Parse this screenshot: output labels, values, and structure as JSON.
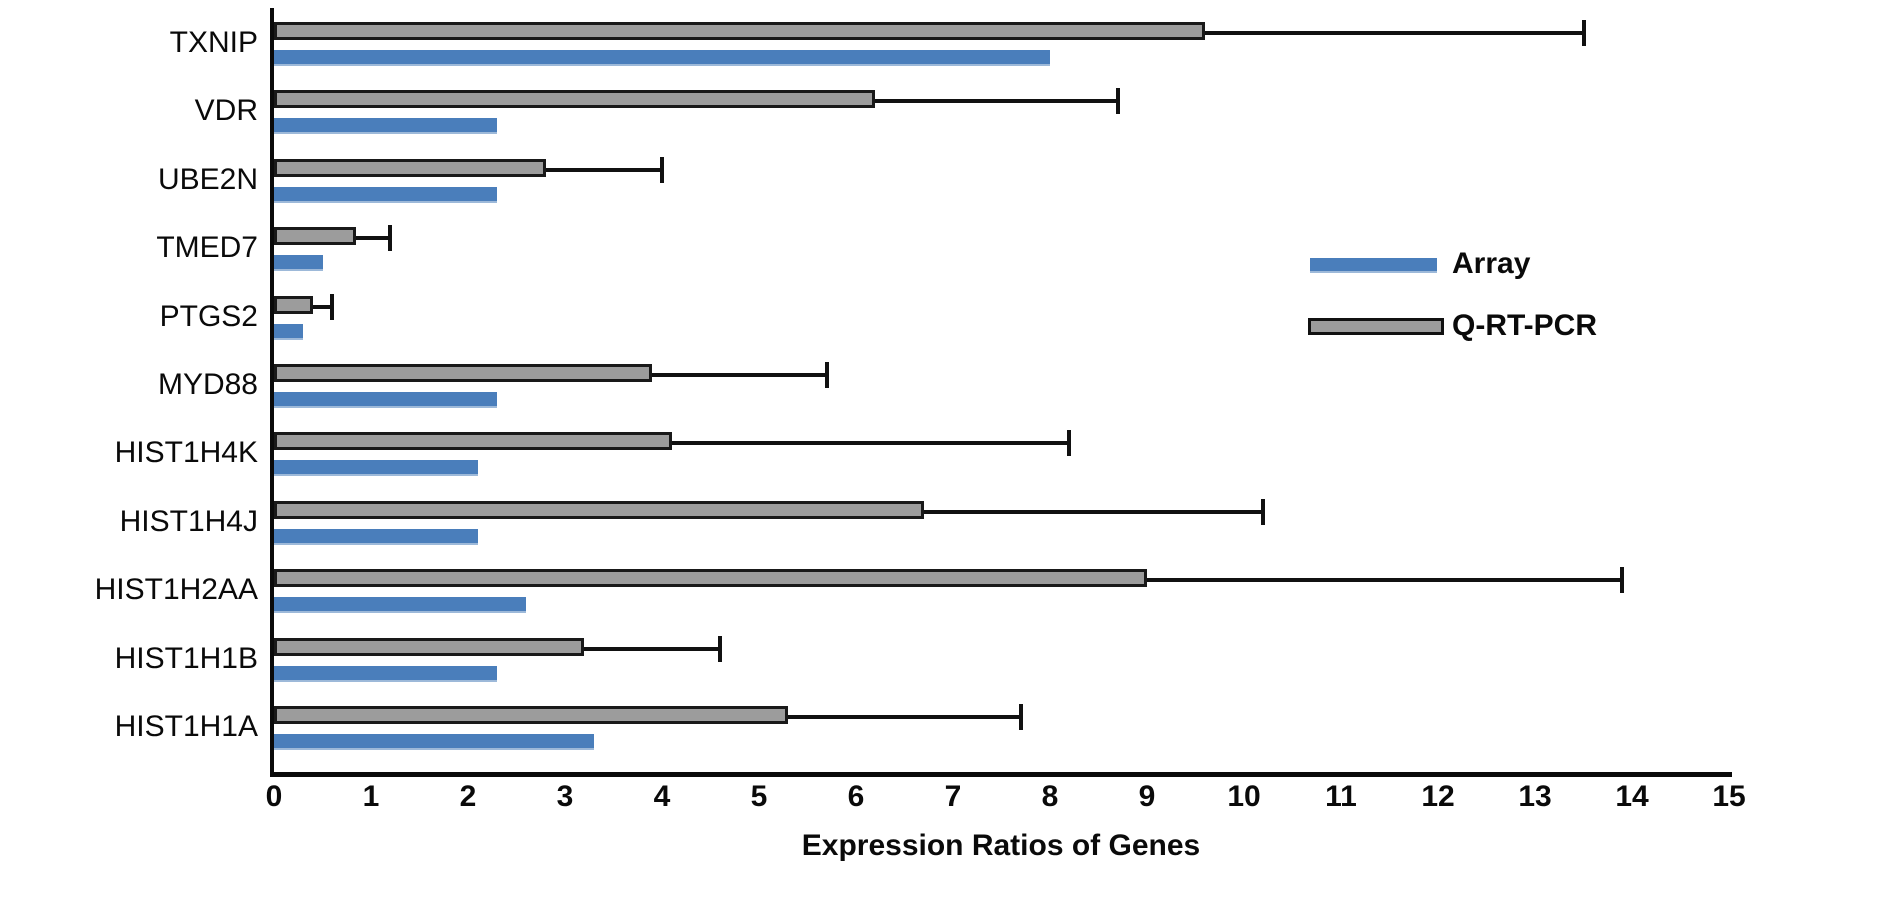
{
  "chart_data": {
    "type": "bar",
    "orientation": "horizontal",
    "title": "",
    "xlabel": "Expression Ratios of Genes",
    "ylabel": "",
    "xlim": [
      0,
      15
    ],
    "x_ticks": [
      0,
      1,
      2,
      3,
      4,
      5,
      6,
      7,
      8,
      9,
      10,
      11,
      12,
      13,
      14,
      15
    ],
    "grid": false,
    "legend_position": "center-right",
    "categories": [
      "TXNIP",
      "VDR",
      "UBE2N",
      "TMED7",
      "PTGS2",
      "MYD88",
      "HIST1H4K",
      "HIST1H4J",
      "HIST1H2AA",
      "HIST1H1B",
      "HIST1H1A"
    ],
    "series": [
      {
        "name": "Array",
        "color": "#4a7ebb",
        "values": [
          8.0,
          2.3,
          2.3,
          0.5,
          0.3,
          2.3,
          2.1,
          2.1,
          2.6,
          2.3,
          3.3
        ]
      },
      {
        "name": "Q-RT-PCR",
        "color": "#9c9c9c",
        "border_color": "#191919",
        "values": [
          9.6,
          6.2,
          2.8,
          0.85,
          0.4,
          3.9,
          4.1,
          6.7,
          9.0,
          3.2,
          5.3
        ],
        "error_high": [
          3.9,
          2.5,
          1.2,
          0.35,
          0.2,
          1.8,
          4.1,
          3.5,
          4.9,
          1.4,
          2.4
        ]
      }
    ]
  }
}
